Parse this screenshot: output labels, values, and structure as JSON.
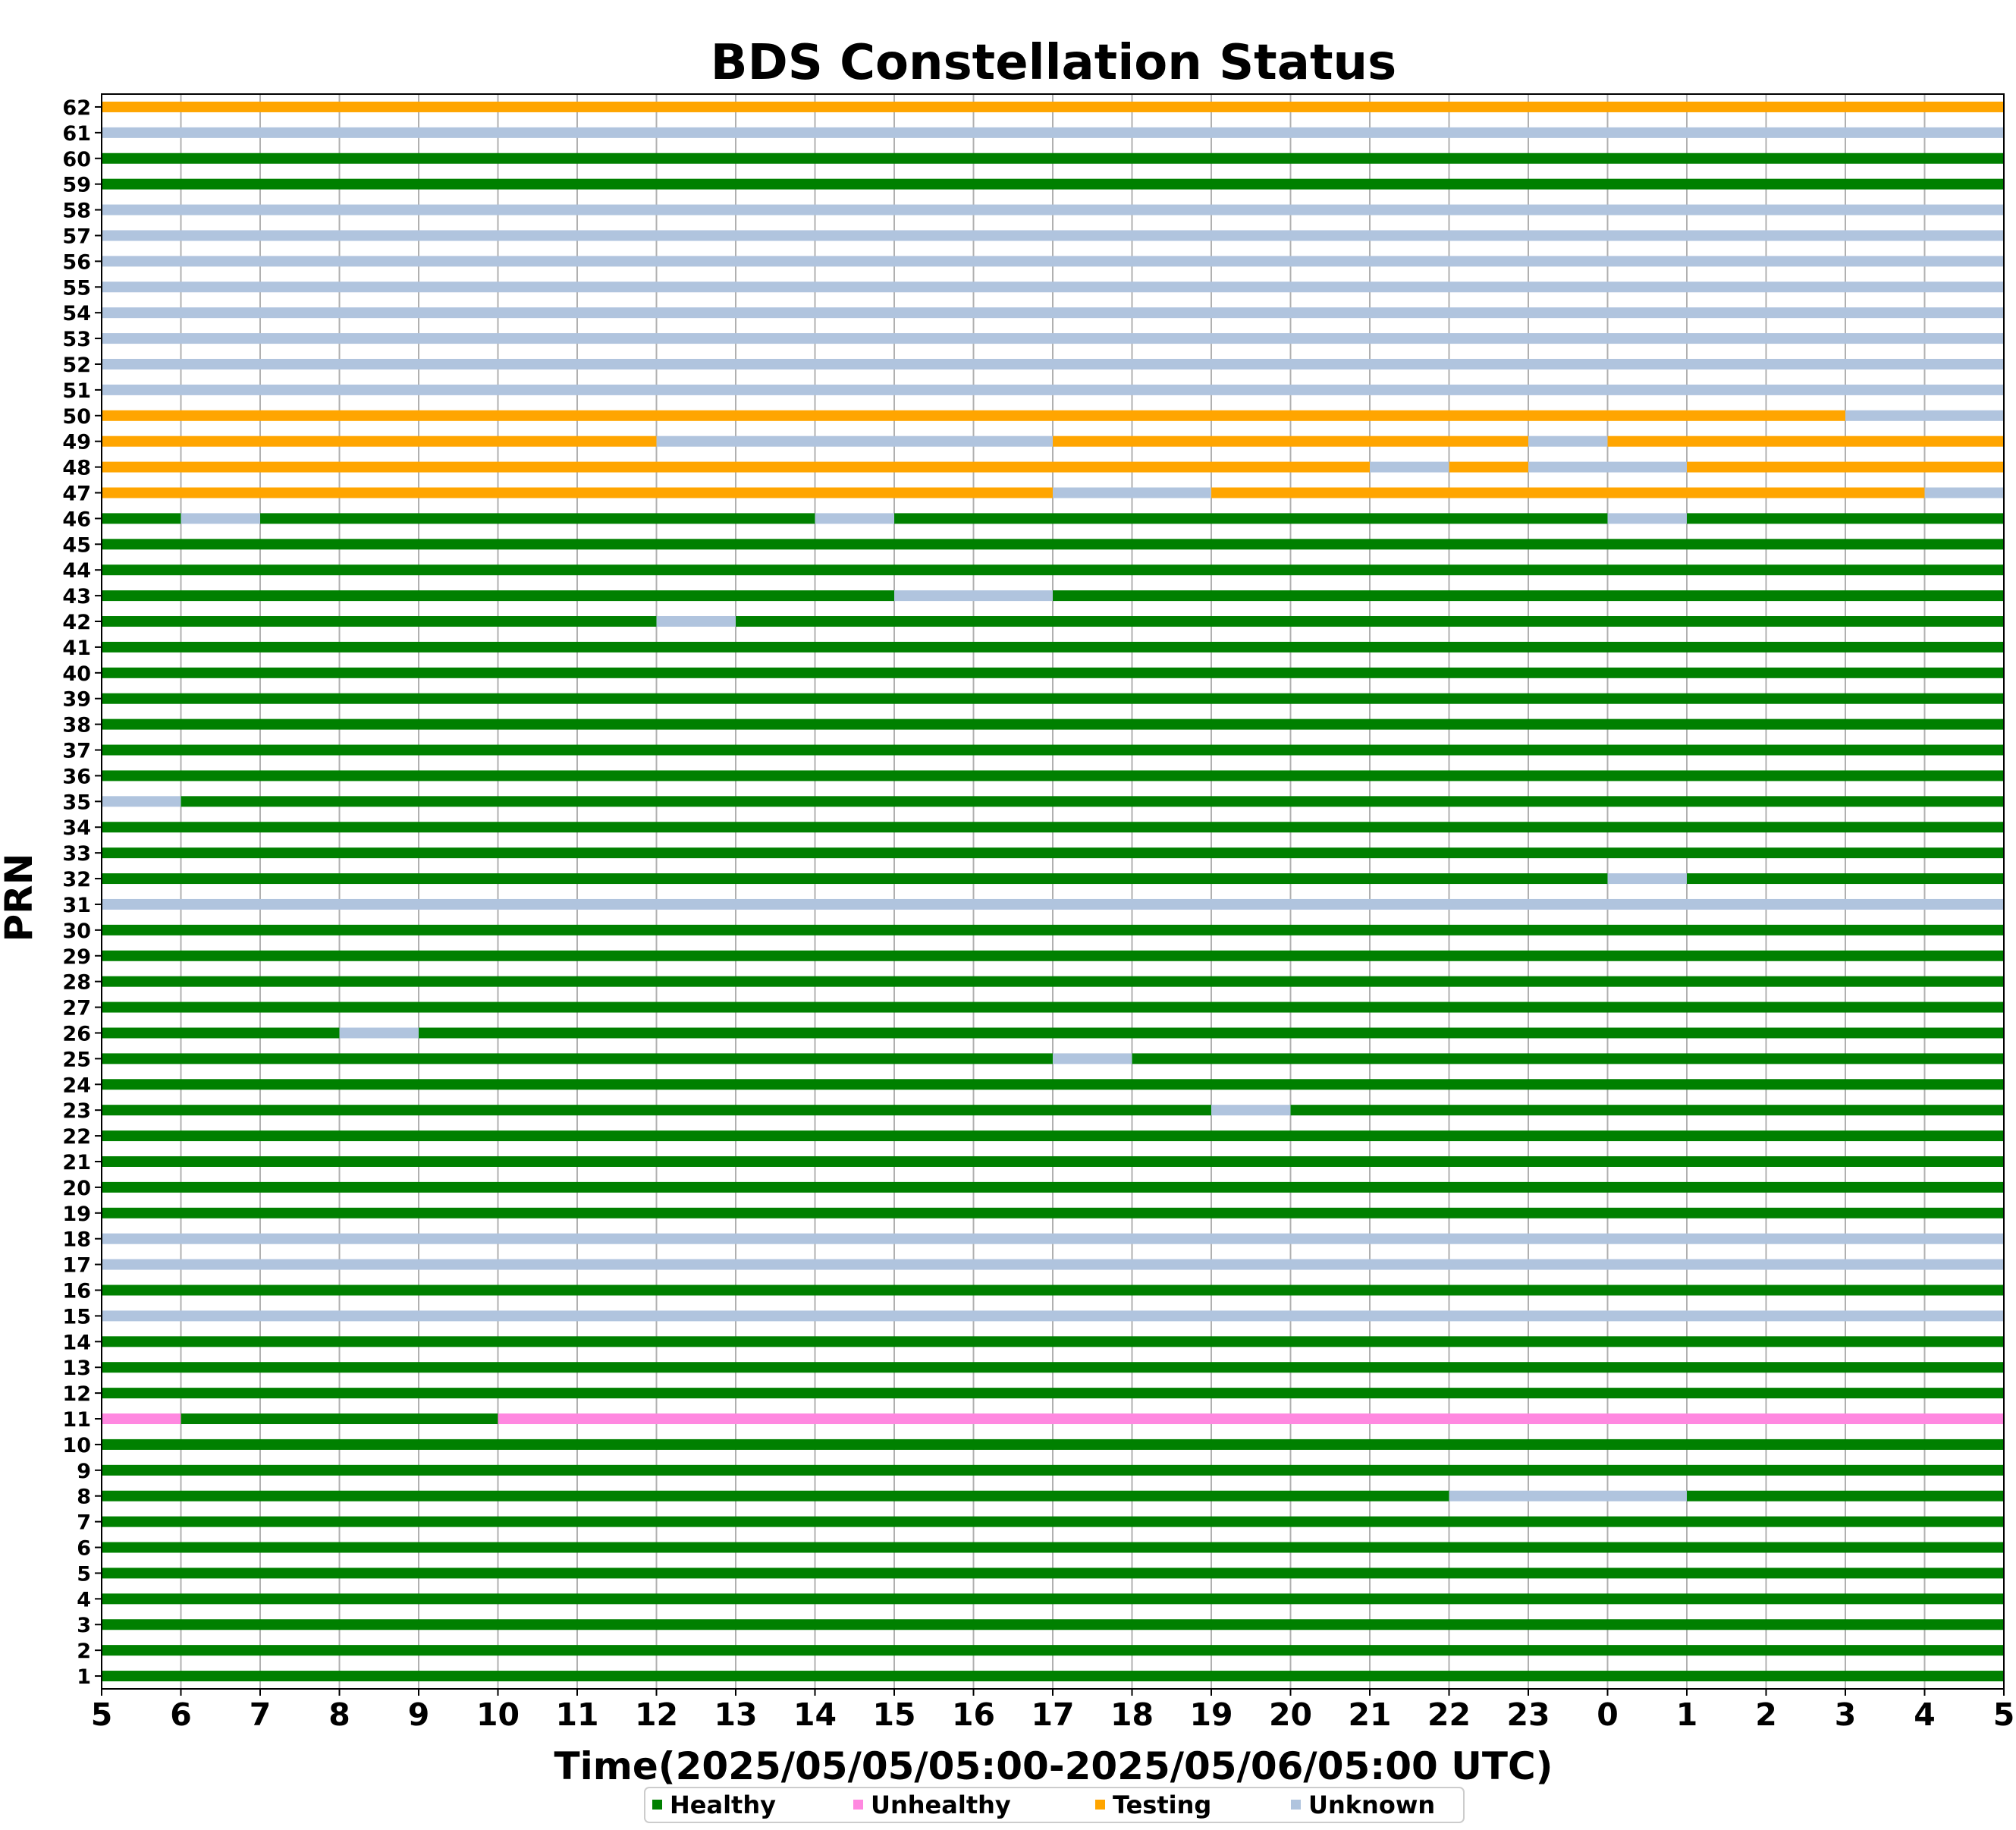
{
  "chart_data": {
    "type": "bar",
    "title": "BDS Constellation Status",
    "xlabel": "Time(2025/05/05/05:00-2025/05/06/05:00 UTC)",
    "ylabel": "PRN",
    "xlim": [
      0,
      24
    ],
    "x_ticks": [
      "5",
      "6",
      "7",
      "8",
      "9",
      "10",
      "11",
      "12",
      "13",
      "14",
      "15",
      "16",
      "17",
      "18",
      "19",
      "20",
      "21",
      "22",
      "23",
      "0",
      "1",
      "2",
      "3",
      "4",
      "5"
    ],
    "grid": "vertical",
    "legend_position": "bottom-center",
    "status_colors": {
      "Healthy": "#008000",
      "Unhealthy": "#ff88e0",
      "Testing": "#ffa500",
      "Unknown": "#b0c4de"
    },
    "legend": [
      {
        "label": "Healthy",
        "status": "Healthy"
      },
      {
        "label": "Unhealthy",
        "status": "Unhealthy"
      },
      {
        "label": "Testing",
        "status": "Testing"
      },
      {
        "label": "Unknown",
        "status": "Unknown"
      }
    ],
    "series": [
      {
        "prn": 1,
        "segments": [
          [
            0,
            24,
            "Healthy"
          ]
        ]
      },
      {
        "prn": 2,
        "segments": [
          [
            0,
            24,
            "Healthy"
          ]
        ]
      },
      {
        "prn": 3,
        "segments": [
          [
            0,
            24,
            "Healthy"
          ]
        ]
      },
      {
        "prn": 4,
        "segments": [
          [
            0,
            24,
            "Healthy"
          ]
        ]
      },
      {
        "prn": 5,
        "segments": [
          [
            0,
            24,
            "Healthy"
          ]
        ]
      },
      {
        "prn": 6,
        "segments": [
          [
            0,
            24,
            "Healthy"
          ]
        ]
      },
      {
        "prn": 7,
        "segments": [
          [
            0,
            24,
            "Healthy"
          ]
        ]
      },
      {
        "prn": 8,
        "segments": [
          [
            0,
            17,
            "Healthy"
          ],
          [
            17,
            20,
            "Unknown"
          ],
          [
            20,
            24,
            "Healthy"
          ]
        ]
      },
      {
        "prn": 9,
        "segments": [
          [
            0,
            24,
            "Healthy"
          ]
        ]
      },
      {
        "prn": 10,
        "segments": [
          [
            0,
            24,
            "Healthy"
          ]
        ]
      },
      {
        "prn": 11,
        "segments": [
          [
            0,
            1,
            "Unhealthy"
          ],
          [
            1,
            5,
            "Healthy"
          ],
          [
            5,
            24,
            "Unhealthy"
          ]
        ]
      },
      {
        "prn": 12,
        "segments": [
          [
            0,
            24,
            "Healthy"
          ]
        ]
      },
      {
        "prn": 13,
        "segments": [
          [
            0,
            24,
            "Healthy"
          ]
        ]
      },
      {
        "prn": 14,
        "segments": [
          [
            0,
            24,
            "Healthy"
          ]
        ]
      },
      {
        "prn": 15,
        "segments": [
          [
            0,
            24,
            "Unknown"
          ]
        ]
      },
      {
        "prn": 16,
        "segments": [
          [
            0,
            24,
            "Healthy"
          ]
        ]
      },
      {
        "prn": 17,
        "segments": [
          [
            0,
            24,
            "Unknown"
          ]
        ]
      },
      {
        "prn": 18,
        "segments": [
          [
            0,
            24,
            "Unknown"
          ]
        ]
      },
      {
        "prn": 19,
        "segments": [
          [
            0,
            24,
            "Healthy"
          ]
        ]
      },
      {
        "prn": 20,
        "segments": [
          [
            0,
            24,
            "Healthy"
          ]
        ]
      },
      {
        "prn": 21,
        "segments": [
          [
            0,
            24,
            "Healthy"
          ]
        ]
      },
      {
        "prn": 22,
        "segments": [
          [
            0,
            24,
            "Healthy"
          ]
        ]
      },
      {
        "prn": 23,
        "segments": [
          [
            0,
            14,
            "Healthy"
          ],
          [
            14,
            15,
            "Unknown"
          ],
          [
            15,
            24,
            "Healthy"
          ]
        ]
      },
      {
        "prn": 24,
        "segments": [
          [
            0,
            24,
            "Healthy"
          ]
        ]
      },
      {
        "prn": 25,
        "segments": [
          [
            0,
            12,
            "Healthy"
          ],
          [
            12,
            13,
            "Unknown"
          ],
          [
            13,
            24,
            "Healthy"
          ]
        ]
      },
      {
        "prn": 26,
        "segments": [
          [
            0,
            3,
            "Healthy"
          ],
          [
            3,
            4,
            "Unknown"
          ],
          [
            4,
            24,
            "Healthy"
          ]
        ]
      },
      {
        "prn": 27,
        "segments": [
          [
            0,
            24,
            "Healthy"
          ]
        ]
      },
      {
        "prn": 28,
        "segments": [
          [
            0,
            24,
            "Healthy"
          ]
        ]
      },
      {
        "prn": 29,
        "segments": [
          [
            0,
            24,
            "Healthy"
          ]
        ]
      },
      {
        "prn": 30,
        "segments": [
          [
            0,
            24,
            "Healthy"
          ]
        ]
      },
      {
        "prn": 31,
        "segments": [
          [
            0,
            24,
            "Unknown"
          ]
        ]
      },
      {
        "prn": 32,
        "segments": [
          [
            0,
            19,
            "Healthy"
          ],
          [
            19,
            20,
            "Unknown"
          ],
          [
            20,
            24,
            "Healthy"
          ]
        ]
      },
      {
        "prn": 33,
        "segments": [
          [
            0,
            24,
            "Healthy"
          ]
        ]
      },
      {
        "prn": 34,
        "segments": [
          [
            0,
            24,
            "Healthy"
          ]
        ]
      },
      {
        "prn": 35,
        "segments": [
          [
            0,
            1,
            "Unknown"
          ],
          [
            1,
            24,
            "Healthy"
          ]
        ]
      },
      {
        "prn": 36,
        "segments": [
          [
            0,
            24,
            "Healthy"
          ]
        ]
      },
      {
        "prn": 37,
        "segments": [
          [
            0,
            24,
            "Healthy"
          ]
        ]
      },
      {
        "prn": 38,
        "segments": [
          [
            0,
            24,
            "Healthy"
          ]
        ]
      },
      {
        "prn": 39,
        "segments": [
          [
            0,
            24,
            "Healthy"
          ]
        ]
      },
      {
        "prn": 40,
        "segments": [
          [
            0,
            24,
            "Healthy"
          ]
        ]
      },
      {
        "prn": 41,
        "segments": [
          [
            0,
            24,
            "Healthy"
          ]
        ]
      },
      {
        "prn": 42,
        "segments": [
          [
            0,
            7,
            "Healthy"
          ],
          [
            7,
            8,
            "Unknown"
          ],
          [
            8,
            24,
            "Healthy"
          ]
        ]
      },
      {
        "prn": 43,
        "segments": [
          [
            0,
            10,
            "Healthy"
          ],
          [
            10,
            12,
            "Unknown"
          ],
          [
            12,
            24,
            "Healthy"
          ]
        ]
      },
      {
        "prn": 44,
        "segments": [
          [
            0,
            24,
            "Healthy"
          ]
        ]
      },
      {
        "prn": 45,
        "segments": [
          [
            0,
            24,
            "Healthy"
          ]
        ]
      },
      {
        "prn": 46,
        "segments": [
          [
            0,
            1,
            "Healthy"
          ],
          [
            1,
            2,
            "Unknown"
          ],
          [
            2,
            9,
            "Healthy"
          ],
          [
            9,
            10,
            "Unknown"
          ],
          [
            10,
            19,
            "Healthy"
          ],
          [
            19,
            20,
            "Unknown"
          ],
          [
            20,
            24,
            "Healthy"
          ]
        ]
      },
      {
        "prn": 47,
        "segments": [
          [
            0,
            12,
            "Testing"
          ],
          [
            12,
            14,
            "Unknown"
          ],
          [
            14,
            23,
            "Testing"
          ],
          [
            23,
            24,
            "Unknown"
          ]
        ]
      },
      {
        "prn": 48,
        "segments": [
          [
            0,
            16,
            "Testing"
          ],
          [
            16,
            17,
            "Unknown"
          ],
          [
            17,
            18,
            "Testing"
          ],
          [
            18,
            20,
            "Unknown"
          ],
          [
            20,
            24,
            "Testing"
          ]
        ]
      },
      {
        "prn": 49,
        "segments": [
          [
            0,
            7,
            "Testing"
          ],
          [
            7,
            12,
            "Unknown"
          ],
          [
            12,
            18,
            "Testing"
          ],
          [
            18,
            19,
            "Unknown"
          ],
          [
            19,
            24,
            "Testing"
          ]
        ]
      },
      {
        "prn": 50,
        "segments": [
          [
            0,
            22,
            "Testing"
          ],
          [
            22,
            24,
            "Unknown"
          ]
        ]
      },
      {
        "prn": 51,
        "segments": [
          [
            0,
            24,
            "Unknown"
          ]
        ]
      },
      {
        "prn": 52,
        "segments": [
          [
            0,
            24,
            "Unknown"
          ]
        ]
      },
      {
        "prn": 53,
        "segments": [
          [
            0,
            24,
            "Unknown"
          ]
        ]
      },
      {
        "prn": 54,
        "segments": [
          [
            0,
            24,
            "Unknown"
          ]
        ]
      },
      {
        "prn": 55,
        "segments": [
          [
            0,
            24,
            "Unknown"
          ]
        ]
      },
      {
        "prn": 56,
        "segments": [
          [
            0,
            24,
            "Unknown"
          ]
        ]
      },
      {
        "prn": 57,
        "segments": [
          [
            0,
            24,
            "Unknown"
          ]
        ]
      },
      {
        "prn": 58,
        "segments": [
          [
            0,
            24,
            "Unknown"
          ]
        ]
      },
      {
        "prn": 59,
        "segments": [
          [
            0,
            24,
            "Healthy"
          ]
        ]
      },
      {
        "prn": 60,
        "segments": [
          [
            0,
            24,
            "Healthy"
          ]
        ]
      },
      {
        "prn": 61,
        "segments": [
          [
            0,
            24,
            "Unknown"
          ]
        ]
      },
      {
        "prn": 62,
        "segments": [
          [
            0,
            24,
            "Testing"
          ]
        ]
      }
    ]
  }
}
